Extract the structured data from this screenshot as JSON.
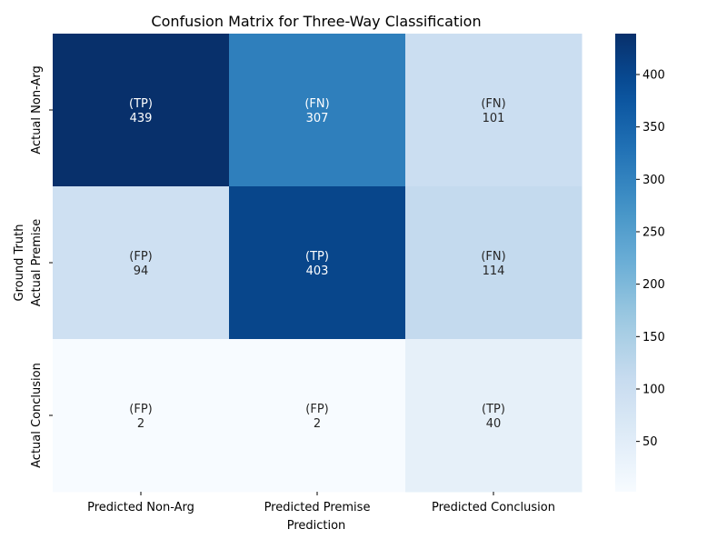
{
  "chart_data": {
    "type": "heatmap",
    "title": "Confusion Matrix for Three-Way Classification",
    "xlabel": "Prediction",
    "ylabel": "Ground Truth",
    "x_categories": [
      "Predicted Non-Arg",
      "Predicted Premise",
      "Predicted Conclusion"
    ],
    "y_categories": [
      "Actual Non-Arg",
      "Actual Premise",
      "Actual Conclusion"
    ],
    "values": [
      [
        439,
        307,
        101
      ],
      [
        94,
        403,
        114
      ],
      [
        2,
        2,
        40
      ]
    ],
    "cell_tags": [
      [
        "(TP)",
        "(FN)",
        "(FN)"
      ],
      [
        "(FP)",
        "(TP)",
        "(FN)"
      ],
      [
        "(FP)",
        "(FP)",
        "(TP)"
      ]
    ],
    "colormap": "Blues",
    "color_range": [
      2,
      439
    ],
    "colorbar_ticks": [
      50,
      100,
      150,
      200,
      250,
      300,
      350,
      400
    ]
  }
}
